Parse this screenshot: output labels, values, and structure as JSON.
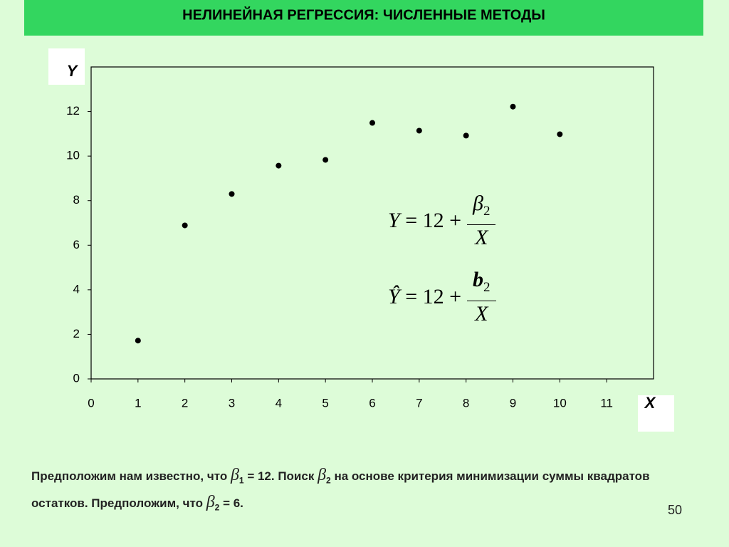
{
  "chart_data": {
    "type": "scatter",
    "title": "НЕЛИНЕЙНАЯ РЕГРЕССИЯ: ЧИСЛЕННЫЕ МЕТОДЫ",
    "x_label": "X",
    "y_label": "Y",
    "series": [
      {
        "color": "#000000",
        "x": [
          1,
          2,
          3,
          4,
          5,
          6,
          7,
          8,
          9,
          10
        ],
        "values": [
          1.72,
          6.89,
          8.3,
          9.57,
          9.83,
          11.49,
          11.14,
          10.92,
          12.22,
          10.98
        ]
      }
    ],
    "xlim": [
      0,
      12
    ],
    "xticks": [
      0,
      1,
      2,
      3,
      4,
      5,
      6,
      7,
      8,
      9,
      10,
      11
    ],
    "ylim": [
      0,
      14
    ],
    "yticks": [
      0,
      2,
      4,
      6,
      8,
      10,
      12
    ],
    "grid": false
  },
  "equations": [
    {
      "lhs": "Y",
      "rhs": "= 12 +",
      "num": "β",
      "num_sub": "2",
      "den": "X"
    },
    {
      "lhs": "Ŷ",
      "rhs": "= 12 +",
      "num": "b",
      "num_sub": "2",
      "den": "X"
    }
  ],
  "note": {
    "parts": [
      "Предположим нам известно, что ",
      "β",
      "1",
      " = 12. Поиск ",
      "β",
      "2",
      " на основе критерия минимизации суммы квадратов остатков. Предположим, что ",
      "β",
      "2",
      " = 6."
    ]
  },
  "page_number": "50"
}
